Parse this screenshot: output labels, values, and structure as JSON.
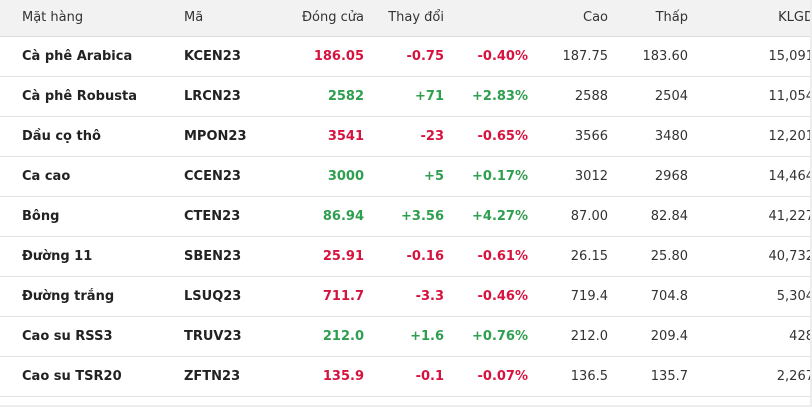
{
  "table": {
    "headers": {
      "name": "Mặt hàng",
      "code": "Mã",
      "close": "Đóng cửa",
      "change": "Thay đổi",
      "high": "Cao",
      "low": "Thấp",
      "volume": "KLGD"
    },
    "rows": [
      {
        "name": "Cà phê Arabica",
        "code": "KCEN23",
        "close": "186.05",
        "change": "-0.75",
        "pct": "-0.40%",
        "high": "187.75",
        "low": "183.60",
        "volume": "15,091",
        "trend": "down"
      },
      {
        "name": "Cà phê Robusta",
        "code": "LRCN23",
        "close": "2582",
        "change": "+71",
        "pct": "+2.83%",
        "high": "2588",
        "low": "2504",
        "volume": "11,054",
        "trend": "up"
      },
      {
        "name": "Dầu cọ thô",
        "code": "MPON23",
        "close": "3541",
        "change": "-23",
        "pct": "-0.65%",
        "high": "3566",
        "low": "3480",
        "volume": "12,201",
        "trend": "down"
      },
      {
        "name": "Ca cao",
        "code": "CCEN23",
        "close": "3000",
        "change": "+5",
        "pct": "+0.17%",
        "high": "3012",
        "low": "2968",
        "volume": "14,464",
        "trend": "up"
      },
      {
        "name": "Bông",
        "code": "CTEN23",
        "close": "86.94",
        "change": "+3.56",
        "pct": "+4.27%",
        "high": "87.00",
        "low": "82.84",
        "volume": "41,227",
        "trend": "up"
      },
      {
        "name": "Đường 11",
        "code": "SBEN23",
        "close": "25.91",
        "change": "-0.16",
        "pct": "-0.61%",
        "high": "26.15",
        "low": "25.80",
        "volume": "40,732",
        "trend": "down"
      },
      {
        "name": "Đường trắng",
        "code": "LSUQ23",
        "close": "711.7",
        "change": "-3.3",
        "pct": "-0.46%",
        "high": "719.4",
        "low": "704.8",
        "volume": "5,304",
        "trend": "down"
      },
      {
        "name": "Cao su RSS3",
        "code": "TRUV23",
        "close": "212.0",
        "change": "+1.6",
        "pct": "+0.76%",
        "high": "212.0",
        "low": "209.4",
        "volume": "428",
        "trend": "up"
      },
      {
        "name": "Cao su TSR20",
        "code": "ZFTN23",
        "close": "135.9",
        "change": "-0.1",
        "pct": "-0.07%",
        "high": "136.5",
        "low": "135.7",
        "volume": "2,267",
        "trend": "down"
      }
    ]
  },
  "colors": {
    "up": "#2e9e4f",
    "down": "#d6133e",
    "header_bg": "#f2f2f2"
  }
}
